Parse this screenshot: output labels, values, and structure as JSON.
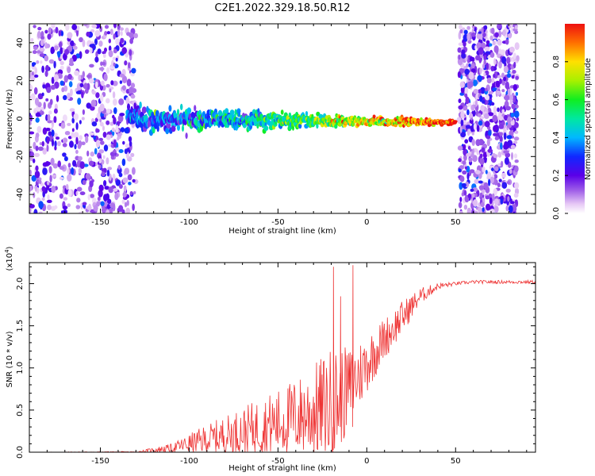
{
  "figure_title": "C2E1.2022.329.18.50.R12",
  "chart_data": [
    {
      "type": "heatmap",
      "title": "",
      "xlabel": "Height of straight line (km)",
      "ylabel": "Frequency (Hz)",
      "xlim": [
        -190,
        95
      ],
      "ylim": [
        -50,
        50
      ],
      "x_ticks": [
        -150,
        -100,
        -50,
        0,
        50
      ],
      "y_ticks": [
        -40,
        -20,
        0,
        20,
        40
      ],
      "x_tick_labels": [
        "-150",
        "-100",
        "-50",
        "0",
        "50"
      ],
      "y_tick_labels": [
        "-40",
        "-20",
        "0",
        "20",
        "40"
      ],
      "colorbar": {
        "label": "Normalized spectral amplitude",
        "range": [
          0,
          1
        ],
        "ticks": [
          0.0,
          0.2,
          0.4,
          0.6,
          0.8
        ],
        "tick_labels": [
          "0.0",
          "0.2",
          "0.4",
          "0.6",
          "0.8"
        ],
        "colormap": "rainbow (white to purple to blue to cyan to green to yellow to red)"
      },
      "features": [
        {
          "description": "noise region",
          "x_range": [
            -190,
            -130
          ],
          "y_range": [
            -50,
            50
          ],
          "amplitude": 0.15
        },
        {
          "description": "signal line",
          "x_range": [
            -135,
            50
          ],
          "freq_at_start": 0,
          "freq_at_end": -2,
          "amplitude_start": 0.3,
          "amplitude_end": 1.0
        },
        {
          "description": "noise region",
          "x_range": [
            52,
            85
          ],
          "y_range": [
            -50,
            50
          ],
          "amplitude": 0.15
        }
      ]
    },
    {
      "type": "line",
      "title": "",
      "xlabel": "Height of straight line (km)",
      "ylabel": "SNR (10 * v/v)",
      "y_multiplier_label": "(x10",
      "y_multiplier_exp": "4",
      "xlim": [
        -190,
        95
      ],
      "ylim": [
        0,
        2.25
      ],
      "x_ticks": [
        -150,
        -100,
        -50,
        0,
        50
      ],
      "y_ticks": [
        0.0,
        0.5,
        1.0,
        1.5,
        2.0
      ],
      "x_tick_labels": [
        "-150",
        "-100",
        "-50",
        "0",
        "50"
      ],
      "y_tick_labels": [
        "0.0",
        "0.5",
        "1.0",
        "1.5",
        "2.0"
      ],
      "color": "#ee3333",
      "trend": {
        "x": [
          -190,
          -130,
          -110,
          -90,
          -70,
          -50,
          -35,
          -20,
          -10,
          0,
          10,
          20,
          30,
          40,
          50,
          60,
          70,
          80,
          95
        ],
        "y": [
          0.0,
          0.0,
          0.05,
          0.15,
          0.25,
          0.35,
          0.45,
          0.55,
          0.75,
          1.05,
          1.35,
          1.6,
          1.85,
          1.97,
          2.0,
          2.02,
          2.02,
          2.02,
          2.02
        ],
        "noise_amplitude": [
          0.0,
          0.01,
          0.05,
          0.18,
          0.28,
          0.4,
          0.5,
          0.7,
          0.5,
          0.35,
          0.25,
          0.2,
          0.1,
          0.04,
          0.02,
          0.02,
          0.02,
          0.02,
          0.02
        ]
      },
      "spikes": [
        {
          "x": -19,
          "y": 2.2
        },
        {
          "x": -8,
          "y": 2.22
        },
        {
          "x": -15,
          "y": 1.85
        }
      ]
    }
  ]
}
